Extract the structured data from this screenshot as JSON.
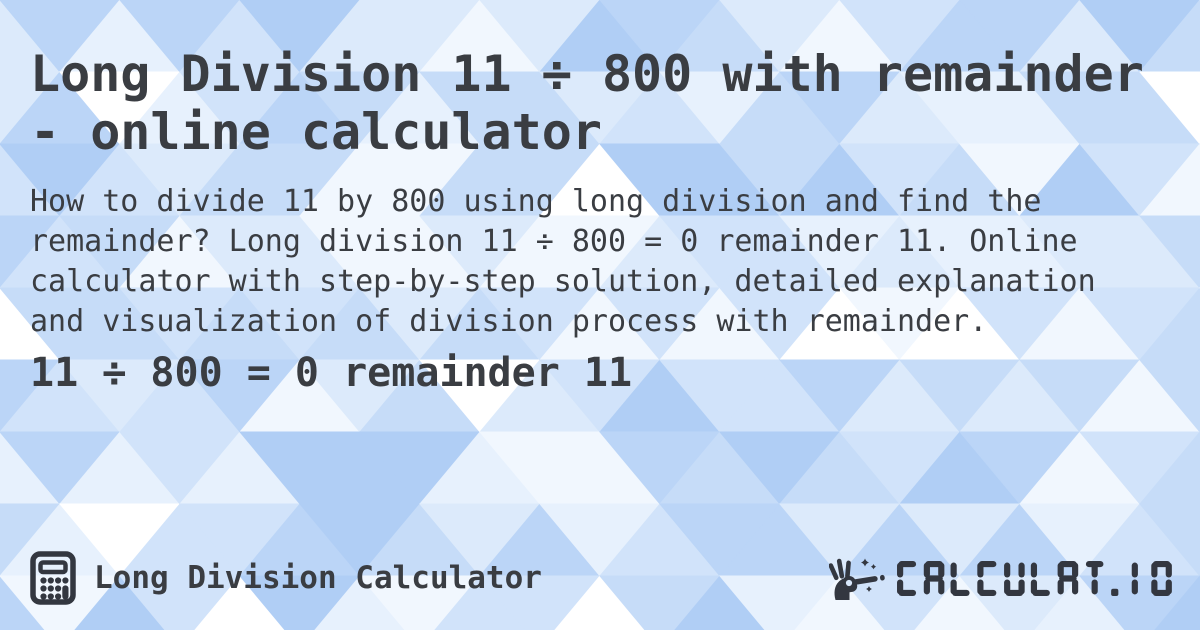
{
  "content": {
    "title": "Long Division 11 ÷ 800 with remainder - online calculator",
    "description": "How to divide 11 by 800 using long division and find the remainder? Long division 11 ÷ 800 = 0 remainder 11. Online calculator with step-by-step solution, detailed explanation and visualization of division process with remainder.",
    "result": "11 ÷ 800 = 0 remainder 11"
  },
  "footer": {
    "calculator_label": "Long Division Calculator",
    "brand_wordmark": "CALCULAT.IO",
    "icons": {
      "left": "calculator-icon",
      "right": "magic-wand-hand-icon"
    }
  },
  "colors": {
    "text": "#3a3d42",
    "icon": "#333740",
    "wand_ring_hole": "#d9e8fb",
    "mosaic_palette": [
      "#a5c7f3",
      "#b0cef5",
      "#bbd5f7",
      "#c6dcf8",
      "#d1e3fa",
      "#dceafb",
      "#e7f1fd",
      "#f1f7fe",
      "#ffffff"
    ]
  }
}
